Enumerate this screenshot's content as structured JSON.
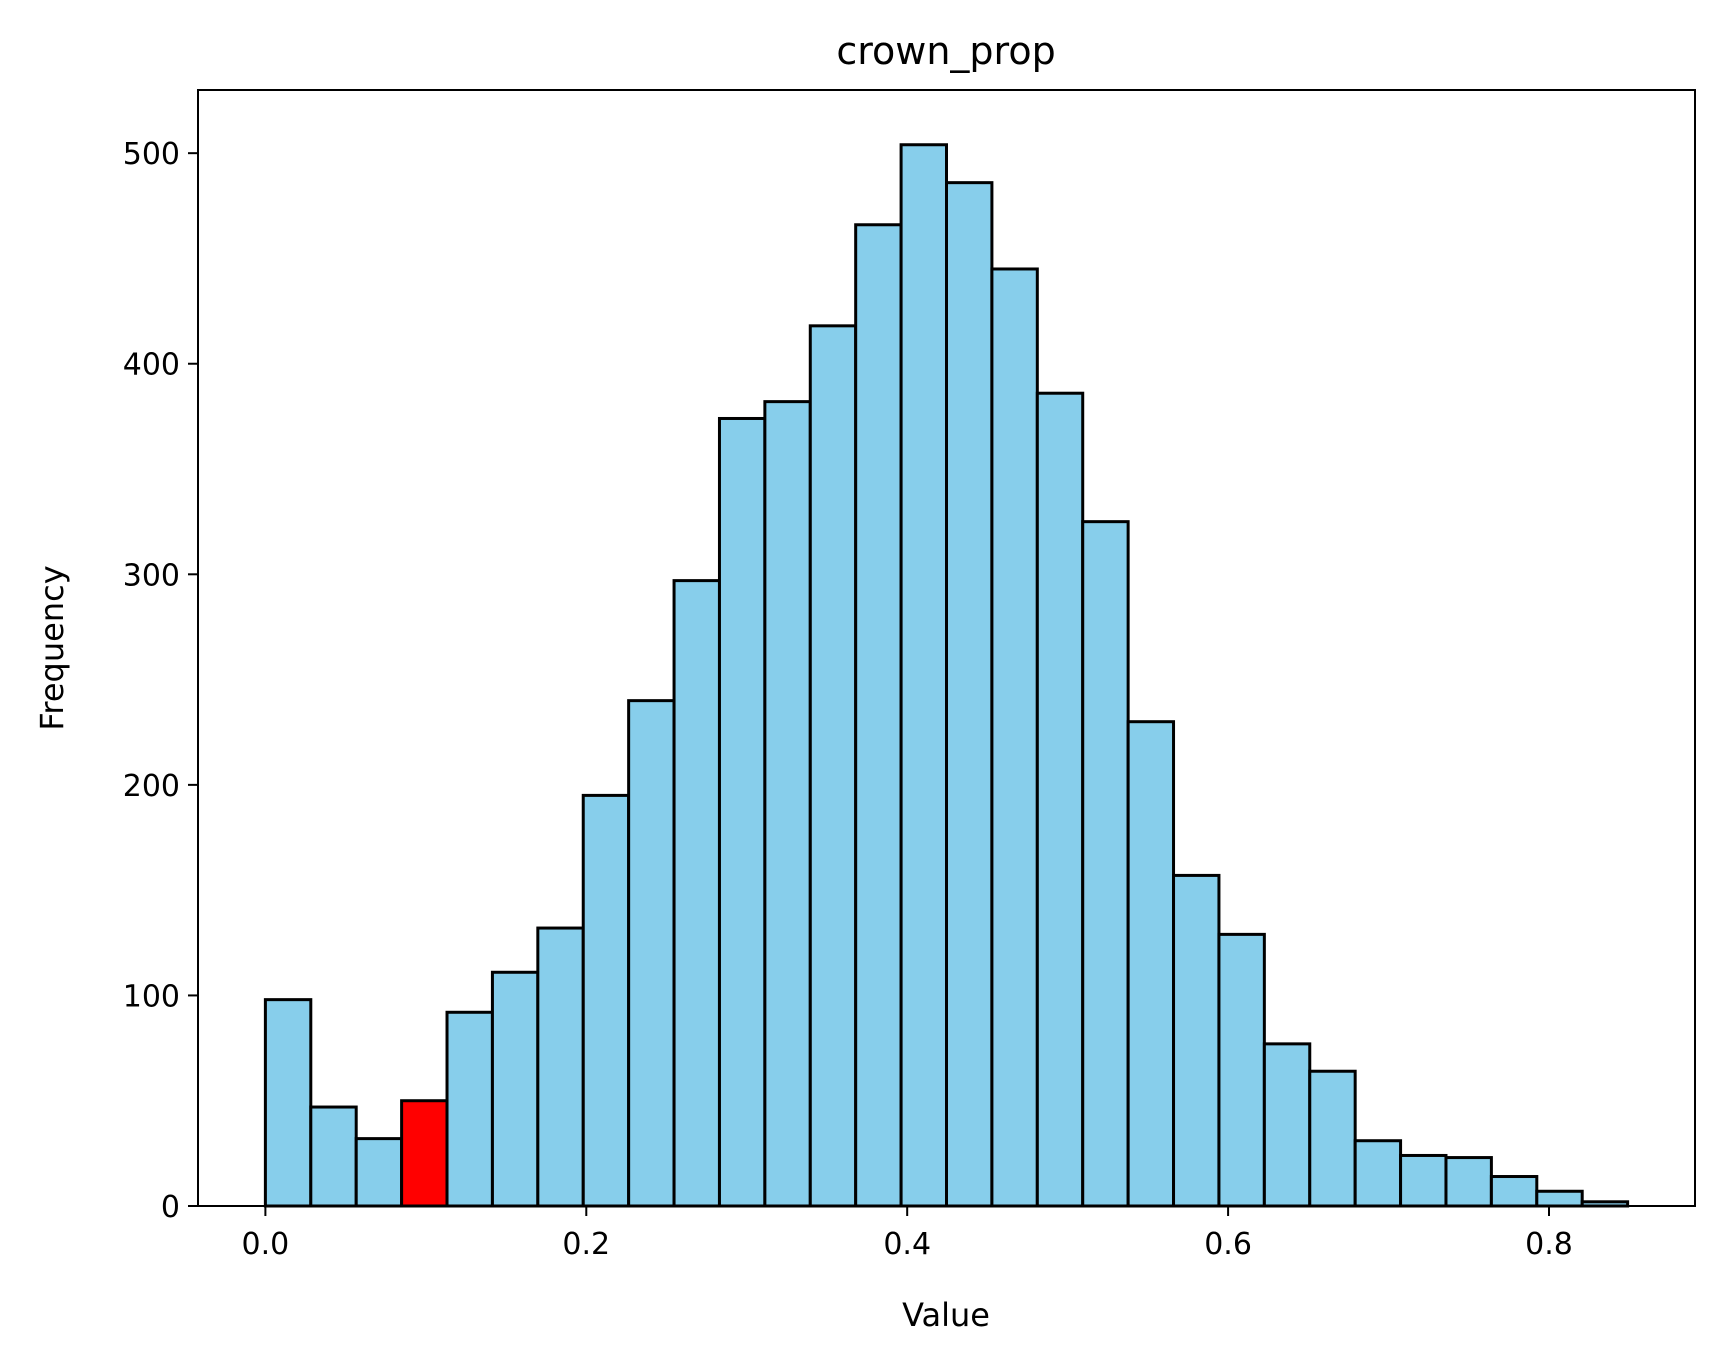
{
  "chart_data": {
    "type": "bar",
    "subtype": "histogram",
    "title": "crown_prop",
    "xlabel": "Value",
    "ylabel": "Frequency",
    "xlim": [
      -0.042,
      0.891
    ],
    "ylim": [
      0,
      530
    ],
    "xticks": [
      0.0,
      0.2,
      0.4,
      0.6,
      0.8
    ],
    "xtick_labels": [
      "0.0",
      "0.2",
      "0.4",
      "0.6",
      "0.8"
    ],
    "yticks": [
      0,
      100,
      200,
      300,
      400,
      500
    ],
    "ytick_labels": [
      "0",
      "100",
      "200",
      "300",
      "400",
      "500"
    ],
    "bin_start": 0.0,
    "bin_width": 0.0283,
    "values": [
      98,
      47,
      32,
      50,
      92,
      111,
      132,
      195,
      240,
      297,
      374,
      382,
      418,
      466,
      504,
      486,
      445,
      386,
      325,
      230,
      157,
      129,
      77,
      64,
      31,
      24,
      23,
      14,
      7,
      2
    ],
    "highlight_index": 3,
    "bar_color": "#87CEEB",
    "highlight_color": "#FF0000",
    "edge_color": "#000000",
    "grid": false,
    "legend": "none"
  }
}
